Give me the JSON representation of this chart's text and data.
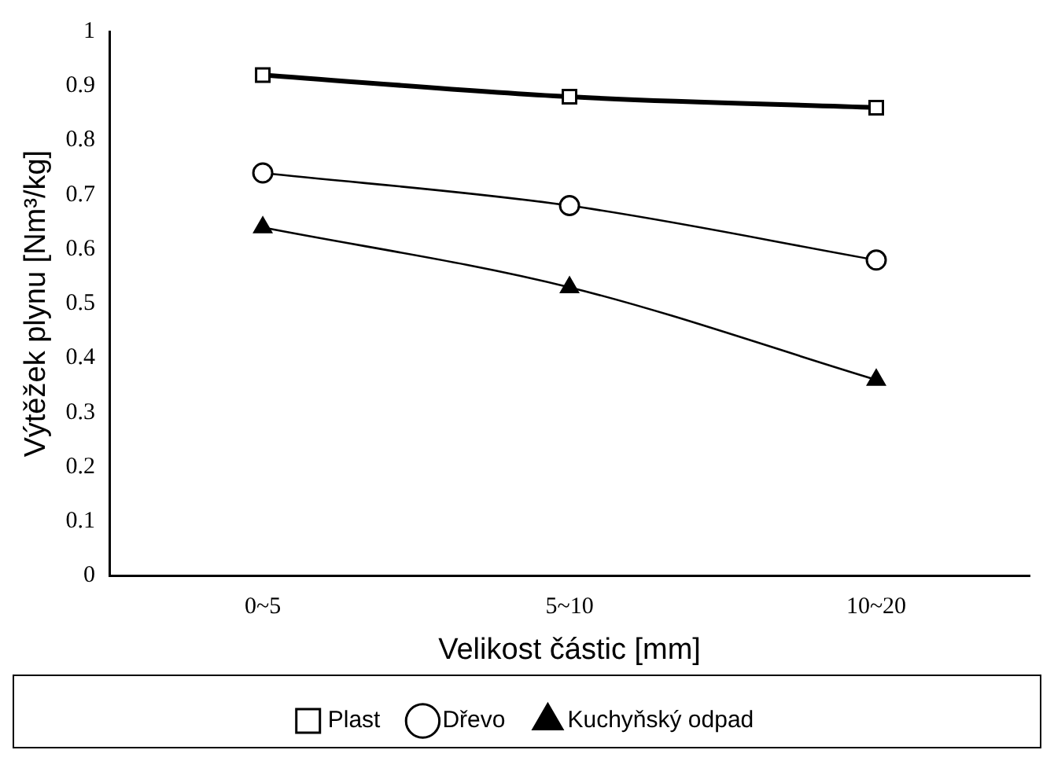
{
  "chart_data": {
    "type": "line",
    "xlabel": "Velikost částic [mm]",
    "ylabel": "Výtěžek plynu [Nm³/kg]",
    "categories": [
      "0~5",
      "5~10",
      "10~20"
    ],
    "series": [
      {
        "name": "Plast",
        "color": "#000000",
        "values": [
          0.92,
          0.88,
          0.86
        ],
        "marker": "square"
      },
      {
        "name": "Dřevo",
        "color": "#000000",
        "values": [
          0.74,
          0.68,
          0.58
        ],
        "marker": "circle"
      },
      {
        "name": "Kuchyňský odpad",
        "color": "#000000",
        "values": [
          0.64,
          0.53,
          0.36
        ],
        "marker": "triangle"
      }
    ],
    "ylim": [
      0,
      1
    ],
    "yticks": [
      0,
      0.1,
      0.2,
      0.3,
      0.4,
      0.5,
      0.6,
      0.7,
      0.8,
      0.9,
      1
    ],
    "grid": false,
    "legend": "bottom"
  }
}
